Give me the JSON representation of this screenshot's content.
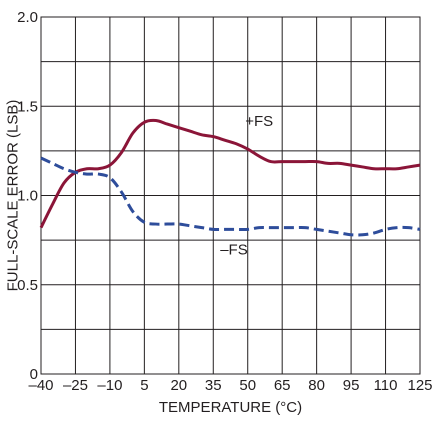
{
  "chart_data": {
    "type": "line",
    "xlabel": "TEMPERATURE (°C)",
    "ylabel": "FULL-SCALE ERROR (LSB)",
    "xlim": [
      -40,
      125
    ],
    "ylim": [
      0,
      2.0
    ],
    "x_ticks": [
      -40,
      -25,
      -10,
      5,
      20,
      35,
      50,
      65,
      80,
      95,
      110,
      125
    ],
    "x_tick_labels": [
      "–40",
      "–25",
      "–10",
      "5",
      "20",
      "35",
      "50",
      "65",
      "80",
      "95",
      "110",
      "125"
    ],
    "y_ticks": [
      0,
      0.5,
      1.0,
      1.5,
      2.0
    ],
    "y_tick_labels": [
      "0",
      "0.5",
      "1.0",
      "1.5",
      "2.0"
    ],
    "grid": true,
    "series": [
      {
        "name": "+FS",
        "color": "#8b1538",
        "style": "solid",
        "label_at": [
          55,
          1.39
        ],
        "x": [
          -40,
          -35,
          -30,
          -25,
          -20,
          -15,
          -10,
          -5,
          0,
          5,
          10,
          15,
          20,
          25,
          30,
          35,
          40,
          45,
          50,
          55,
          60,
          65,
          70,
          75,
          80,
          85,
          90,
          95,
          100,
          105,
          110,
          115,
          120,
          125
        ],
        "y": [
          0.82,
          0.95,
          1.07,
          1.13,
          1.15,
          1.15,
          1.17,
          1.24,
          1.35,
          1.41,
          1.42,
          1.4,
          1.38,
          1.36,
          1.34,
          1.33,
          1.31,
          1.29,
          1.26,
          1.22,
          1.19,
          1.19,
          1.19,
          1.19,
          1.19,
          1.18,
          1.18,
          1.17,
          1.16,
          1.15,
          1.15,
          1.15,
          1.16,
          1.17
        ]
      },
      {
        "name": "–FS",
        "color": "#2e4d9b",
        "style": "dashed",
        "label_at": [
          44,
          0.67
        ],
        "x": [
          -40,
          -35,
          -30,
          -25,
          -20,
          -15,
          -10,
          -5,
          0,
          5,
          10,
          15,
          20,
          25,
          30,
          35,
          40,
          45,
          50,
          55,
          60,
          65,
          70,
          75,
          80,
          85,
          90,
          95,
          100,
          105,
          110,
          115,
          120,
          125
        ],
        "y": [
          1.21,
          1.18,
          1.15,
          1.13,
          1.12,
          1.12,
          1.1,
          1.02,
          0.91,
          0.85,
          0.84,
          0.84,
          0.84,
          0.83,
          0.82,
          0.81,
          0.81,
          0.81,
          0.81,
          0.82,
          0.82,
          0.82,
          0.82,
          0.82,
          0.81,
          0.8,
          0.79,
          0.78,
          0.78,
          0.79,
          0.81,
          0.82,
          0.82,
          0.81
        ]
      }
    ]
  }
}
